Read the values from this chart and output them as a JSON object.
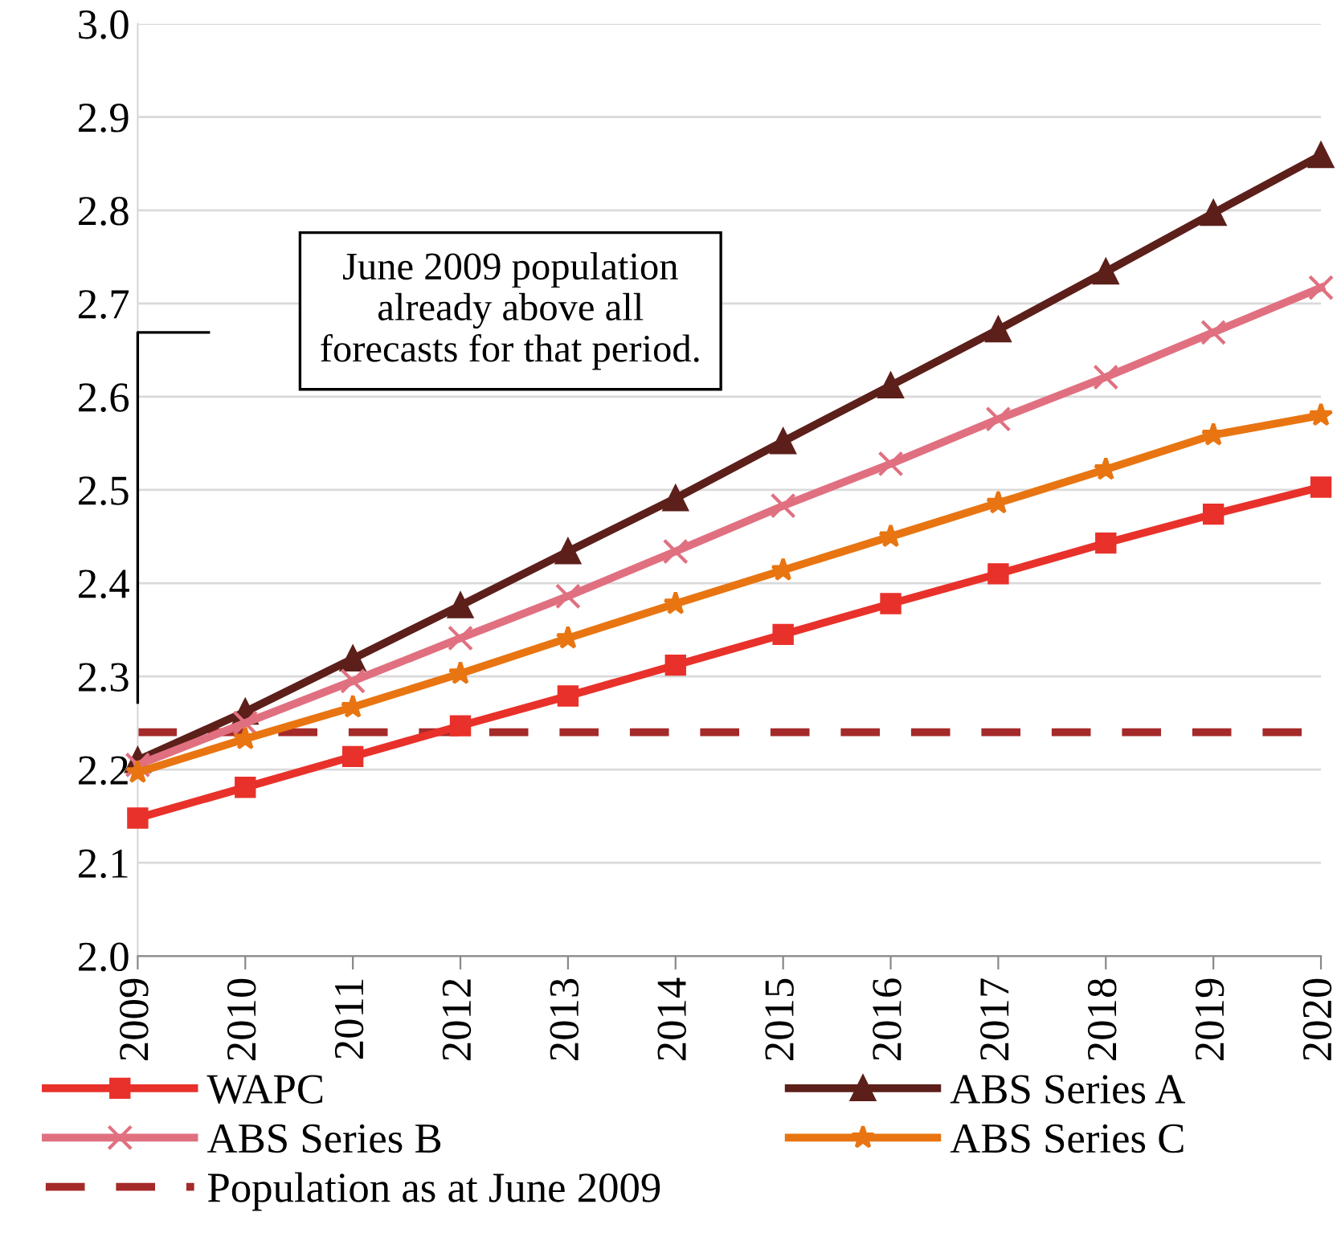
{
  "chart_data": {
    "type": "line",
    "categories": [
      "2009",
      "2010",
      "2011",
      "2012",
      "2013",
      "2014",
      "2015",
      "2016",
      "2017",
      "2018",
      "2019",
      "2020"
    ],
    "series": [
      {
        "name": "WAPC",
        "color": "#e8312a",
        "marker": "square",
        "values": [
          2.148,
          2.181,
          2.214,
          2.247,
          2.279,
          2.312,
          2.345,
          2.378,
          2.41,
          2.443,
          2.474,
          2.503
        ]
      },
      {
        "name": "ABS Series A",
        "color": "#5c1f1a",
        "marker": "triangle",
        "values": [
          2.21,
          2.262,
          2.319,
          2.376,
          2.434,
          2.491,
          2.552,
          2.612,
          2.672,
          2.734,
          2.797,
          2.859
        ]
      },
      {
        "name": "ABS Series B",
        "color": "#e07080",
        "marker": "cross",
        "values": [
          2.205,
          2.25,
          2.295,
          2.341,
          2.386,
          2.434,
          2.483,
          2.528,
          2.576,
          2.621,
          2.669,
          2.717
        ]
      },
      {
        "name": "ABS Series C",
        "color": "#e87511",
        "marker": "star",
        "values": [
          2.197,
          2.233,
          2.267,
          2.303,
          2.341,
          2.378,
          2.414,
          2.45,
          2.486,
          2.522,
          2.559,
          2.58
        ]
      }
    ],
    "ref_lines": [
      {
        "axis": "y",
        "value": 2.24,
        "label": "Population as at June 2009",
        "color": "#a52a2a",
        "line_style": "dashed"
      }
    ],
    "annotations": [
      "June 2009 population\nalready above all\nforecasts for that period."
    ],
    "ylim": [
      2.0,
      3.0
    ],
    "yticks": [
      {
        "value": 2.0,
        "label": "2.0"
      },
      2.1,
      2.2,
      2.3,
      2.4,
      2.5,
      2.6,
      2.7,
      2.8,
      2.9,
      {
        "value": 3.0,
        "label": "3.0"
      }
    ],
    "grid": "y",
    "legend": "bottom",
    "line_style": "solid"
  }
}
